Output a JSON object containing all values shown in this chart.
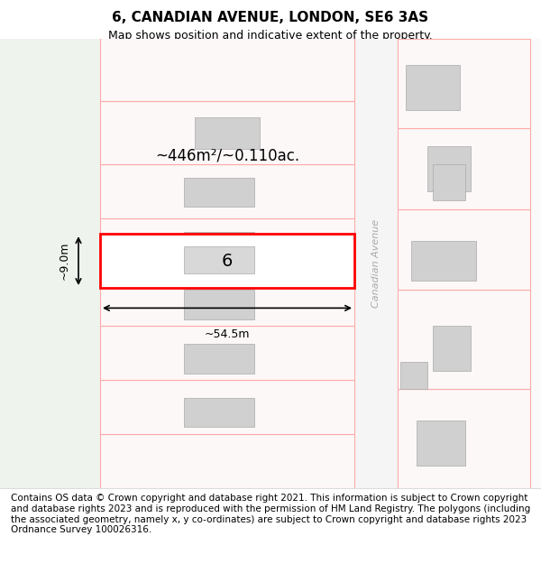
{
  "title": "6, CANADIAN AVENUE, LONDON, SE6 3AS",
  "subtitle": "Map shows position and indicative extent of the property.",
  "copyright_text": "Contains OS data © Crown copyright and database right 2021. This information is subject to Crown copyright and database rights 2023 and is reproduced with the permission of HM Land Registry. The polygons (including the associated geometry, namely x, y co-ordinates) are subject to Crown copyright and database rights 2023 Ordnance Survey 100026316.",
  "map_bg": "#f0f4f0",
  "road_bg": "#ffffff",
  "plot_fill": "#ffffff",
  "plot_border": "#ff0000",
  "highlight_fill": "#ffffff",
  "highlight_border": "#ff0000",
  "building_fill": "#d8d8d8",
  "building_border": "#aaaaaa",
  "parcel_border": "#ffaaaa",
  "street_fill": "#ffffff",
  "street_label": "Canadian Avenue",
  "street_label_color": "#aaaaaa",
  "dimension_label_width": "~54.5m",
  "dimension_label_height": "~9.0m",
  "area_label": "~446m²/~0.110ac.",
  "plot_number": "6",
  "footer_bg": "#ffffff",
  "title_fontsize": 11,
  "subtitle_fontsize": 9,
  "footer_fontsize": 7.5
}
